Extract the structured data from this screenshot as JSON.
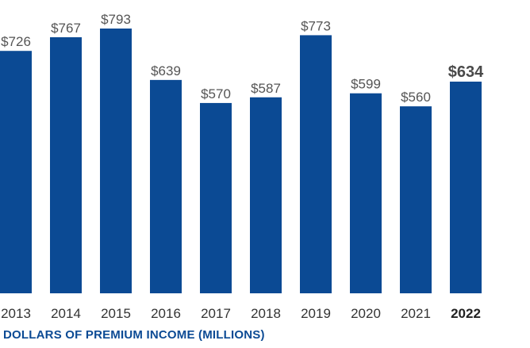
{
  "chart_data": {
    "type": "bar",
    "categories": [
      "2013",
      "2014",
      "2015",
      "2016",
      "2017",
      "2018",
      "2019",
      "2020",
      "2021",
      "2022"
    ],
    "values": [
      726,
      767,
      793,
      639,
      570,
      587,
      773,
      599,
      560,
      634
    ],
    "data_labels": [
      "$726",
      "$767",
      "$793",
      "$639",
      "$570",
      "$587",
      "$773",
      "$599",
      "$560",
      "$634"
    ],
    "highlight_category": "2022",
    "xlabel": "DOLLARS OF PREMIUM INCOME (MILLIONS)",
    "ylabel": "",
    "ylim": [
      0,
      793
    ],
    "grid": false,
    "legend": "none",
    "bar_color": "#0b4a94"
  }
}
